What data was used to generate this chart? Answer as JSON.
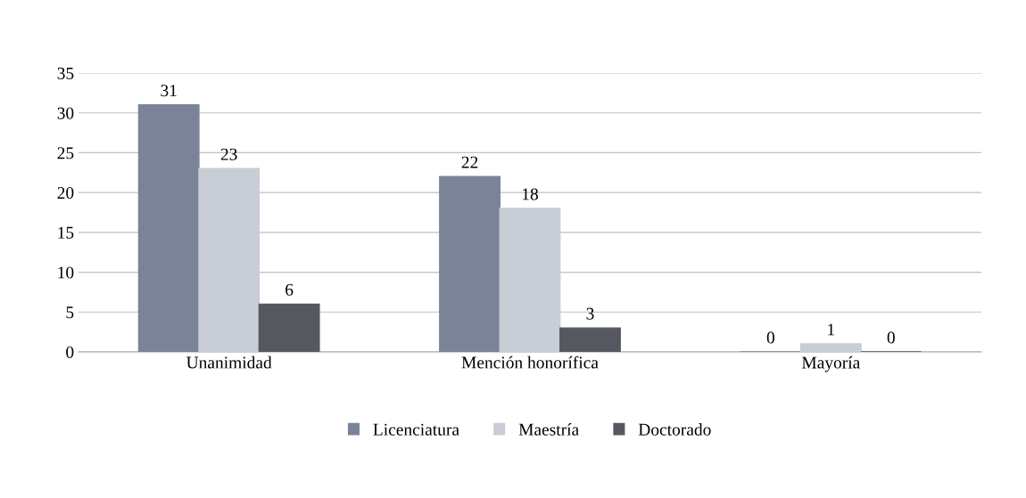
{
  "chart_data": {
    "type": "bar",
    "categories": [
      "Unanimidad",
      "Mención honorífica",
      "Mayoría"
    ],
    "series": [
      {
        "name": "Licenciatura",
        "color": "#7a8398",
        "values": [
          31,
          22,
          0
        ]
      },
      {
        "name": "Maestría",
        "color": "#c9cdd6",
        "values": [
          23,
          18,
          1
        ]
      },
      {
        "name": "Doctorado",
        "color": "#55585f",
        "values": [
          6,
          3,
          0
        ]
      }
    ],
    "ylim": [
      0,
      35
    ],
    "yticks": [
      0,
      5,
      10,
      15,
      20,
      25,
      30,
      35
    ],
    "grid": "y",
    "legend": "bottom",
    "data_labels": true
  }
}
